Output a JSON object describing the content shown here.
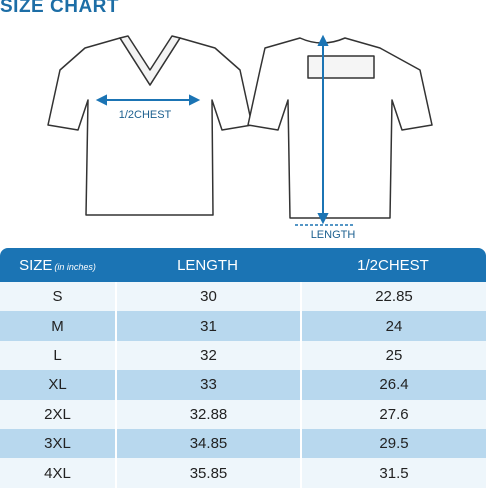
{
  "header": {
    "title": "SIZE CHART"
  },
  "diagram": {
    "chest_label": "1/2CHEST",
    "length_label": "LENGTH"
  },
  "table": {
    "columns": [
      "SIZE",
      "LENGTH",
      "1/2CHEST"
    ],
    "unit_note": "(in inches)",
    "rows": [
      [
        "S",
        "30",
        "22.85"
      ],
      [
        "M",
        "31",
        "24"
      ],
      [
        "L",
        "32",
        "25"
      ],
      [
        "XL",
        "33",
        "26.4"
      ],
      [
        "2XL",
        "32.88",
        "27.6"
      ],
      [
        "3XL",
        "34.85",
        "29.5"
      ],
      [
        "4XL",
        "35.85",
        "31.5"
      ]
    ]
  }
}
